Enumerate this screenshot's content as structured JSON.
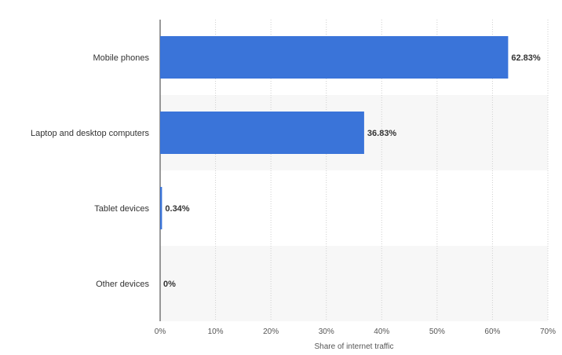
{
  "chart_data": {
    "type": "bar",
    "orientation": "horizontal",
    "categories": [
      "Mobile phones",
      "Laptop and desktop computers",
      "Tablet devices",
      "Other devices"
    ],
    "values": [
      62.83,
      36.83,
      0.34,
      0
    ],
    "data_labels": [
      "62.83%",
      "36.83%",
      "0.34%",
      "0%"
    ],
    "xlabel": "Share of internet traffic",
    "ylabel": "",
    "xlim": [
      0,
      70
    ],
    "x_ticks": [
      0,
      10,
      20,
      30,
      40,
      50,
      60,
      70
    ],
    "x_tick_labels": [
      "0%",
      "10%",
      "20%",
      "30%",
      "40%",
      "50%",
      "60%",
      "70%"
    ],
    "grid": true,
    "bar_color": "#3a74d9",
    "band_color": "#f7f7f7"
  }
}
